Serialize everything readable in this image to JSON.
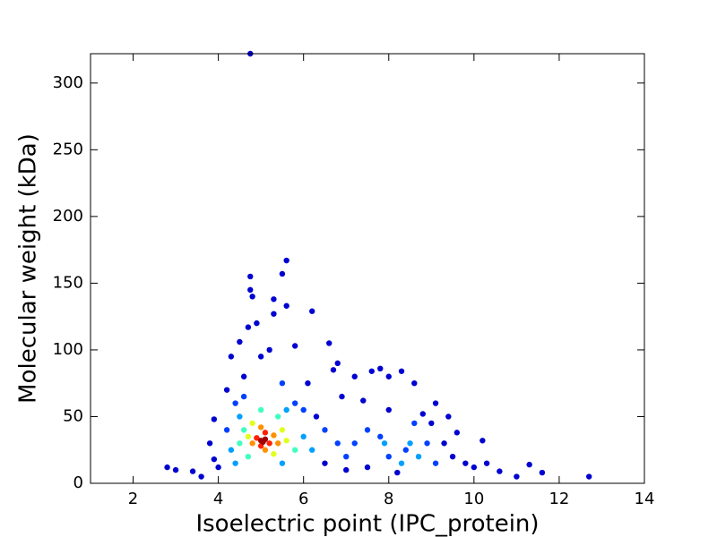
{
  "chart_data": {
    "type": "scatter",
    "xlabel": "Isoelectric point (IPC_protein)",
    "ylabel": "Molecular weight (kDa)",
    "xlim": [
      1,
      14
    ],
    "xticks": [
      2,
      4,
      6,
      8,
      10,
      12,
      14
    ],
    "ylim": [
      0,
      322
    ],
    "yticks": [
      0,
      50,
      100,
      150,
      200,
      250,
      300
    ],
    "series": [
      {
        "color": "#0000d0",
        "x": [
          4.75,
          2.8,
          3.0,
          3.4,
          3.6,
          12.7,
          11.6,
          11.3,
          11.0,
          10.6,
          10.3,
          10.2,
          10.0,
          9.8,
          9.6,
          9.4,
          9.1,
          5.6,
          5.5,
          4.75,
          4.75,
          4.8,
          5.3,
          5.6,
          6.2,
          5.3,
          4.9,
          4.7,
          4.5,
          6.6,
          5.8,
          4.3,
          6.8,
          6.7,
          7.8,
          8.3,
          7.6,
          8.0,
          7.2,
          8.6,
          6.1,
          4.2,
          3.9,
          3.8,
          3.9,
          4.0,
          6.9,
          7.4,
          8.0,
          8.8,
          9.0,
          9.3,
          9.5,
          7.0,
          7.5,
          8.2,
          6.5,
          6.3,
          5.2,
          5.0,
          4.6
        ],
        "y": [
          322,
          12,
          10,
          9,
          5,
          5,
          8,
          14,
          5,
          9,
          15,
          32,
          12,
          15,
          38,
          50,
          60,
          167,
          157,
          155,
          145,
          140,
          138,
          133,
          129,
          127,
          120,
          117,
          106,
          105,
          103,
          95,
          90,
          85,
          86,
          84,
          84,
          80,
          80,
          75,
          75,
          70,
          48,
          30,
          18,
          12,
          65,
          62,
          55,
          52,
          45,
          30,
          20,
          10,
          12,
          8,
          15,
          50,
          100,
          95,
          80
        ]
      },
      {
        "color": "#0040ff",
        "x": [
          7.5,
          7.2,
          7.8,
          8.6,
          8.9,
          8.4,
          6.8,
          6.5,
          4.2,
          4.4,
          5.8,
          6.0,
          5.5,
          4.6,
          9.1,
          8.0,
          7.0
        ],
        "y": [
          40,
          30,
          35,
          45,
          30,
          25,
          30,
          40,
          40,
          60,
          60,
          55,
          75,
          65,
          15,
          20,
          20
        ]
      },
      {
        "color": "#00a0ff",
        "x": [
          8.5,
          8.7,
          8.3,
          7.9,
          4.3,
          4.5,
          5.6,
          6.0,
          6.2,
          4.4,
          5.5
        ],
        "y": [
          30,
          20,
          15,
          30,
          25,
          50,
          55,
          35,
          25,
          15,
          15
        ]
      },
      {
        "color": "#40ffc0",
        "x": [
          4.6,
          5.4,
          5.8,
          4.7,
          5.0,
          4.5
        ],
        "y": [
          40,
          50,
          25,
          20,
          55,
          30
        ]
      },
      {
        "color": "#e0ff20",
        "x": [
          4.7,
          5.5,
          5.3,
          4.8,
          5.6
        ],
        "y": [
          35,
          40,
          22,
          45,
          32
        ]
      },
      {
        "color": "#ff9000",
        "x": [
          4.8,
          5.3,
          5.0,
          5.1,
          5.4
        ],
        "y": [
          30,
          36,
          42,
          25,
          30
        ]
      },
      {
        "color": "#ff2000",
        "x": [
          4.9,
          5.2,
          5.0,
          5.1
        ],
        "y": [
          34,
          30,
          28,
          38
        ]
      },
      {
        "color": "#a00000",
        "x": [
          5.0,
          5.1,
          5.05
        ],
        "y": [
          32,
          33,
          31
        ]
      }
    ]
  }
}
